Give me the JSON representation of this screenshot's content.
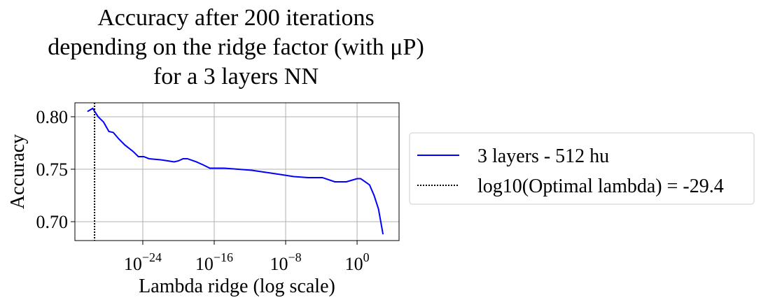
{
  "chart_data": {
    "type": "line",
    "title": [
      "Accuracy after 200 iterations",
      "depending on the ridge factor (with μP)",
      "for a 3 layers NN"
    ],
    "x_label": "Lambda ridge (log scale)",
    "y_label": "Accuracy",
    "x": [
      6.3e-31,
      2.5e-30,
      1e-29,
      4e-29,
      1.6e-28,
      5e-28,
      2e-27,
      1e-26,
      8e-26,
      3.2e-25,
      1.3e-24,
      5e-24,
      1e-22,
      6.3e-22,
      3.2e-21,
      1e-20,
      3.2e-20,
      1e-19,
      1e-18,
      6.3e-18,
      3.2e-17,
      2e-16,
      1.3e-15,
      5e-14,
      1.6e-12,
      6.3e-11,
      2.5e-09,
      8e-08,
      3.2e-06,
      0.00013,
      0.0032,
      0.063,
      1,
      2.5,
      8,
      25,
      80,
      250,
      800
    ],
    "series": [
      {
        "name": "3 layers - 512 hu",
        "color": "#0000ff",
        "values": [
          0.805,
          0.808,
          0.8,
          0.795,
          0.786,
          0.785,
          0.779,
          0.773,
          0.767,
          0.762,
          0.762,
          0.76,
          0.759,
          0.758,
          0.757,
          0.758,
          0.76,
          0.76,
          0.757,
          0.754,
          0.751,
          0.751,
          0.751,
          0.75,
          0.749,
          0.747,
          0.745,
          0.743,
          0.742,
          0.742,
          0.738,
          0.738,
          0.741,
          0.741,
          0.738,
          0.735,
          0.725,
          0.712,
          0.688
        ]
      }
    ],
    "vline": {
      "name": "log10(Optimal lambda) = -29.4",
      "value": 3.98e-30,
      "color": "#000000"
    },
    "xscale": "log",
    "xlim": [
      2.5e-32,
      50000.0
    ],
    "xticks": [
      {
        "value": 1e-24,
        "label": "10^−24"
      },
      {
        "value": 1e-16,
        "label": "10^−16"
      },
      {
        "value": 1e-08,
        "label": "10^−8"
      },
      {
        "value": 1,
        "label": "10^0"
      }
    ],
    "ylim": [
      0.682,
      0.8133
    ],
    "yticks": [
      {
        "value": 0.7,
        "label": "0.70"
      },
      {
        "value": 0.75,
        "label": "0.75"
      },
      {
        "value": 0.8,
        "label": "0.80"
      }
    ],
    "grid": true,
    "legend": "outside right"
  }
}
